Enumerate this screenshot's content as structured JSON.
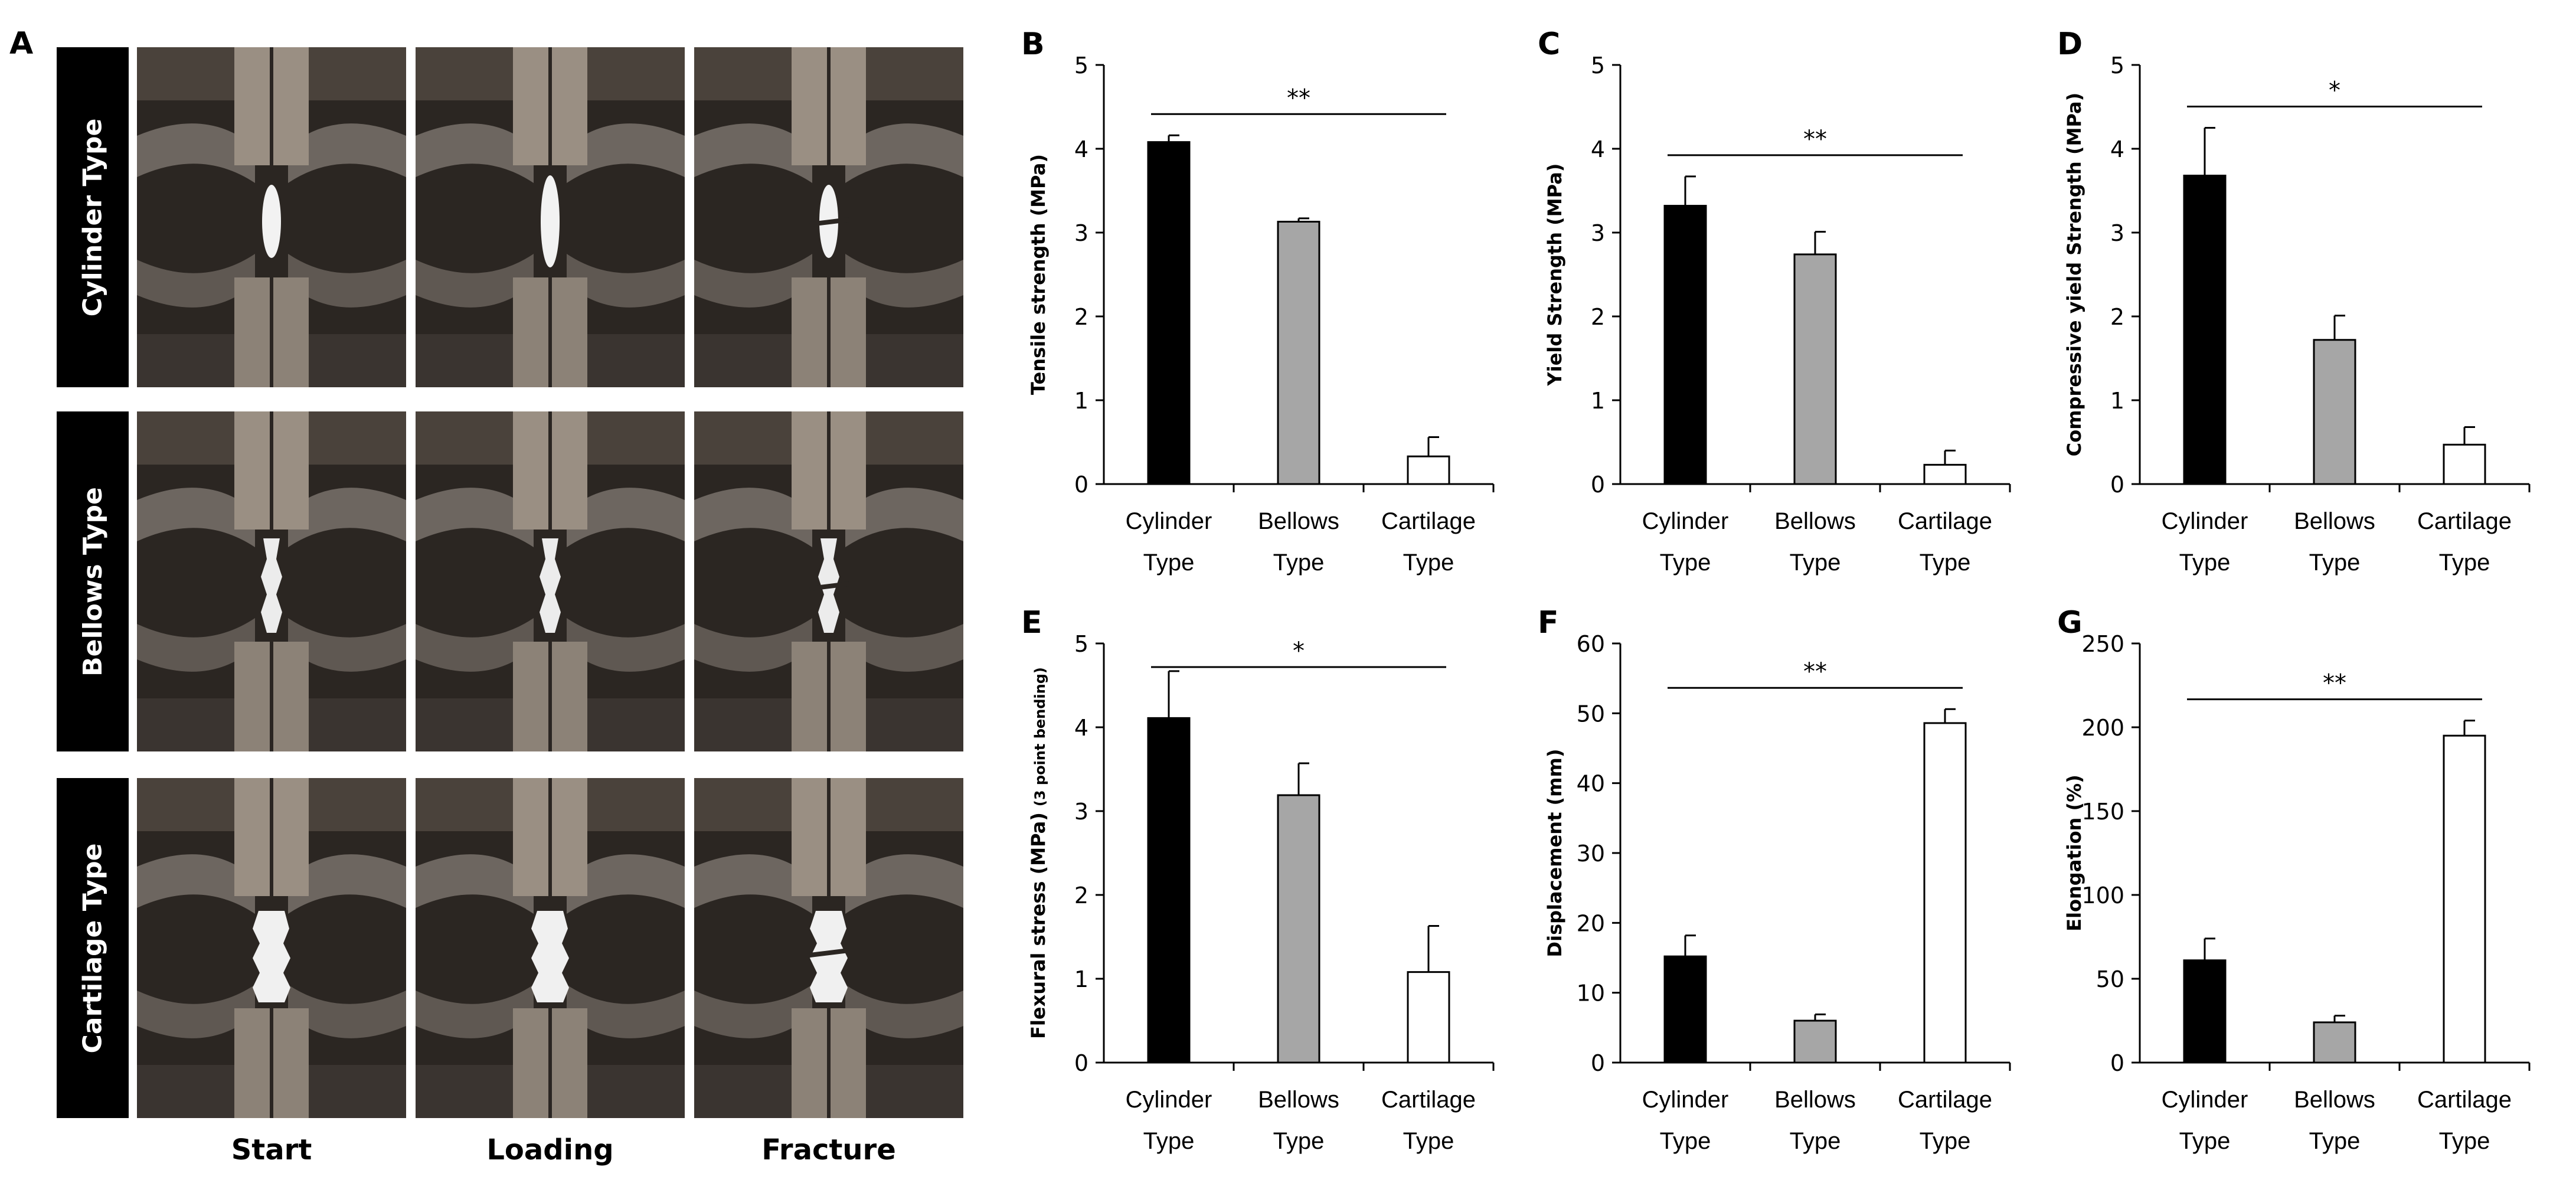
{
  "panel_a": {
    "letter": "A",
    "rows": [
      "Cylinder Type",
      "Bellows Type",
      "Cartilage Type"
    ],
    "columns": [
      "Start",
      "Loading",
      "Fracture"
    ]
  },
  "colors": {
    "black_bar": "#000000",
    "gray_bar": "#a6a6a6",
    "white_bar": "#ffffff"
  },
  "chart_data": [
    {
      "letter": "B",
      "type": "bar",
      "ylabel": "Tensile strength (MPa)",
      "ylabel_sub": "",
      "categories": [
        "Cylinder Type",
        "Bellows Type",
        "Cartilage Type"
      ],
      "values": [
        4.08,
        3.13,
        0.33
      ],
      "errors": [
        0.08,
        0.04,
        0.23
      ],
      "ylim": [
        0,
        5
      ],
      "yticks": [
        0,
        1,
        2,
        3,
        4,
        5
      ],
      "significance": "**"
    },
    {
      "letter": "C",
      "type": "bar",
      "ylabel": "Yield Strength (MPa)",
      "ylabel_sub": "",
      "categories": [
        "Cylinder Type",
        "Bellows Type",
        "Cartilage Type"
      ],
      "values": [
        3.32,
        2.74,
        0.23
      ],
      "errors": [
        0.35,
        0.27,
        0.17
      ],
      "ylim": [
        0,
        5
      ],
      "yticks": [
        0,
        1,
        2,
        3,
        4,
        5
      ],
      "significance": "**"
    },
    {
      "letter": "D",
      "type": "bar",
      "ylabel": "Compressive yield Strength (MPa)",
      "ylabel_sub": "",
      "categories": [
        "Cylinder Type",
        "Bellows Type",
        "Cartilage Type"
      ],
      "values": [
        3.68,
        1.72,
        0.47
      ],
      "errors": [
        0.57,
        0.29,
        0.21
      ],
      "ylim": [
        0,
        5
      ],
      "yticks": [
        0,
        1,
        2,
        3,
        4,
        5
      ],
      "significance": "*"
    },
    {
      "letter": "E",
      "type": "bar",
      "ylabel": "Flexural stress (MPa)",
      "ylabel_sub": "(3 point bending)",
      "categories": [
        "Cylinder Type",
        "Bellows Type",
        "Cartilage Type"
      ],
      "values": [
        4.11,
        3.19,
        1.08
      ],
      "errors": [
        0.56,
        0.38,
        0.55
      ],
      "ylim": [
        0,
        5
      ],
      "yticks": [
        0,
        1,
        2,
        3,
        4,
        5
      ],
      "significance": "*"
    },
    {
      "letter": "F",
      "type": "bar",
      "ylabel": "Displacement (mm)",
      "ylabel_sub": "",
      "categories": [
        "Cylinder Type",
        "Bellows Type",
        "Cartilage Type"
      ],
      "values": [
        15.2,
        6.0,
        48.6
      ],
      "errors": [
        3.0,
        0.9,
        2.0
      ],
      "ylim": [
        0,
        60
      ],
      "yticks": [
        0,
        10,
        20,
        30,
        40,
        50,
        60
      ],
      "significance": "**"
    },
    {
      "letter": "G",
      "type": "bar",
      "ylabel": "Elongation (%)",
      "ylabel_sub": "",
      "categories": [
        "Cylinder Type",
        "Bellows Type",
        "Cartilage Type"
      ],
      "values": [
        61,
        24,
        195
      ],
      "errors": [
        13,
        4,
        9
      ],
      "ylim": [
        0,
        250
      ],
      "yticks": [
        0,
        50,
        100,
        150,
        200,
        250
      ],
      "significance": "**"
    }
  ]
}
